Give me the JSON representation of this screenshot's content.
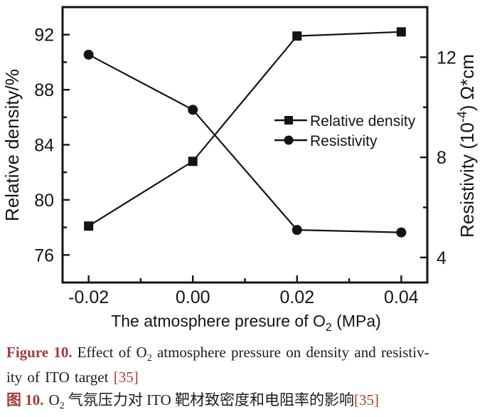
{
  "chart_data": {
    "type": "line",
    "xlabel": "The atmosphere presure of O2 (MPa)",
    "xlabel_parts": [
      "The atmosphere presure of O",
      {
        "sub": "2"
      },
      " (MPa)"
    ],
    "ylabel_left": "Relative density/%",
    "ylabel_right": "Resistivity (10-4) Ω*cm",
    "ylabel_right_parts": [
      "Resistivity (10",
      {
        "sup": "-4"
      },
      ") Ω*cm"
    ],
    "x_axis": {
      "min": -0.025,
      "max": 0.045,
      "major_ticks": [
        -0.02,
        0,
        0.02,
        0.04
      ],
      "minor_ticks": [
        -0.01,
        0.01,
        0.03
      ],
      "tick_labels": [
        "-0.02",
        "0.00",
        "0.02",
        "0.04"
      ]
    },
    "y_left_axis": {
      "min": 74,
      "max": 94,
      "major_ticks": [
        76,
        80,
        84,
        88,
        92
      ],
      "minor_ticks": [
        78,
        82,
        86,
        90
      ],
      "tick_labels": [
        "76",
        "80",
        "84",
        "88",
        "92"
      ]
    },
    "y_right_axis": {
      "min": 3,
      "max": 14,
      "major_ticks": [
        4,
        8,
        12
      ],
      "minor_ticks": [
        6,
        10
      ],
      "tick_labels": [
        "4",
        "8",
        "12"
      ]
    },
    "series": [
      {
        "name": "Relative density",
        "marker": "square",
        "axis": "left",
        "x": [
          -0.02,
          0,
          0.02,
          0.04
        ],
        "y": [
          78.1,
          82.8,
          91.9,
          92.2
        ]
      },
      {
        "name": "Resistivity",
        "marker": "circle",
        "axis": "right",
        "x": [
          -0.02,
          0,
          0.02,
          0.04
        ],
        "y": [
          12.1,
          9.9,
          5.1,
          5.0
        ]
      }
    ],
    "legend": {
      "position": "inside-right-middle",
      "entries": [
        "Relative density",
        "Resistivity"
      ]
    },
    "grid": false,
    "colors": {
      "axis": "#141414",
      "line": "#141414",
      "marker": "#141414",
      "background": "#ffffff"
    }
  },
  "caption": {
    "en": {
      "label": "Figure 10.",
      "seg1": "Effect of O",
      "sub": "2",
      "seg2": " atmosphere pressure on density and resistiv-",
      "seg3": "ity of ITO target ",
      "ref": "[35]"
    },
    "zh": {
      "label": "图 10.",
      "seg1": "O",
      "sub": "2",
      "seg2": " 气氛压力对 ITO 靶材致密度和电阻率的影响",
      "ref": "[35]"
    },
    "colors": {
      "label": "#9e3b38",
      "reference": "#b23a34"
    }
  }
}
